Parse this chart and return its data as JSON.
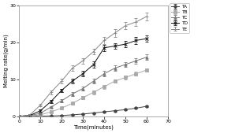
{
  "time": [
    0,
    5,
    10,
    15,
    20,
    25,
    30,
    35,
    40,
    45,
    50,
    55,
    60
  ],
  "TA": [
    0.0,
    0.0,
    0.05,
    0.1,
    0.2,
    0.4,
    0.6,
    0.9,
    1.2,
    1.5,
    1.8,
    2.2,
    2.7
  ],
  "TB": [
    0.0,
    0.1,
    0.4,
    1.2,
    2.2,
    3.5,
    5.0,
    6.5,
    8.0,
    9.5,
    10.5,
    11.5,
    12.5
  ],
  "TC": [
    0.0,
    0.2,
    0.8,
    2.5,
    4.2,
    6.0,
    7.5,
    9.5,
    11.5,
    13.0,
    14.0,
    15.0,
    16.0
  ],
  "TD": [
    0.0,
    0.2,
    1.5,
    4.0,
    7.0,
    9.5,
    11.5,
    14.0,
    18.5,
    19.0,
    19.5,
    20.5,
    21.0
  ],
  "TE": [
    0.0,
    0.3,
    3.0,
    6.5,
    9.5,
    13.0,
    15.0,
    17.5,
    20.5,
    22.5,
    24.5,
    25.5,
    27.0
  ],
  "TA_err": [
    0.0,
    0.05,
    0.05,
    0.1,
    0.1,
    0.1,
    0.1,
    0.15,
    0.2,
    0.2,
    0.2,
    0.2,
    0.3
  ],
  "TB_err": [
    0.0,
    0.1,
    0.15,
    0.2,
    0.3,
    0.3,
    0.4,
    0.5,
    0.5,
    0.5,
    0.5,
    0.5,
    0.5
  ],
  "TC_err": [
    0.0,
    0.1,
    0.2,
    0.3,
    0.4,
    0.5,
    0.5,
    0.6,
    0.7,
    0.7,
    0.7,
    0.7,
    0.8
  ],
  "TD_err": [
    0.0,
    0.1,
    0.3,
    0.4,
    0.5,
    0.6,
    0.7,
    0.8,
    0.9,
    0.8,
    0.8,
    0.9,
    0.9
  ],
  "TE_err": [
    0.0,
    0.1,
    0.3,
    0.5,
    0.6,
    0.7,
    0.7,
    0.8,
    0.9,
    1.0,
    1.0,
    1.0,
    1.0
  ],
  "colors": {
    "TA": "#444444",
    "TB": "#aaaaaa",
    "TC": "#777777",
    "TD": "#111111",
    "TE": "#888888"
  },
  "markers": {
    "TA": "o",
    "TB": "s",
    "TC": "^",
    "TD": "x",
    "TE": "+"
  },
  "markersize": {
    "TA": 2.5,
    "TB": 2.5,
    "TC": 2.5,
    "TD": 3.5,
    "TE": 3.5
  },
  "linewidth": 0.7,
  "xlabel": "Time(minutes)",
  "ylabel": "Melting rate(g/min)",
  "xlim": [
    0,
    70
  ],
  "ylim": [
    0,
    30
  ],
  "xticks": [
    0,
    10,
    20,
    30,
    40,
    50,
    60,
    70
  ],
  "yticks": [
    0,
    10,
    20,
    30
  ],
  "background_color": "#ffffff",
  "legend_labels": [
    "TA",
    "TB",
    "TC",
    "TD",
    "TE"
  ]
}
